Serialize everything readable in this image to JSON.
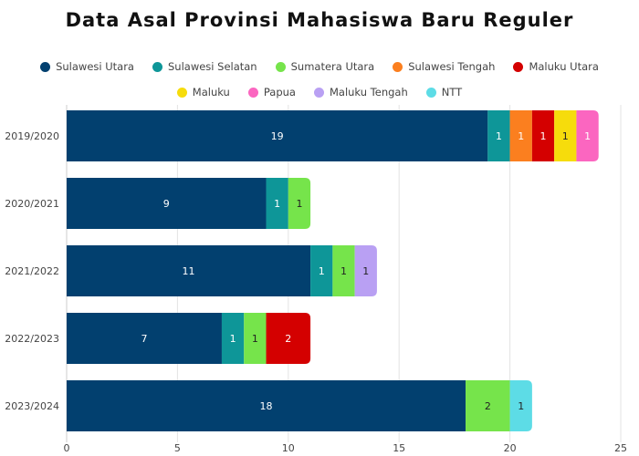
{
  "chart_data": {
    "type": "bar",
    "orientation": "horizontal",
    "stacked": true,
    "title": "Data Asal Provinsi Mahasiswa Baru Reguler",
    "xlabel": "",
    "ylabel": "",
    "xlim": [
      0,
      25
    ],
    "xticks": [
      0,
      5,
      10,
      15,
      20,
      25
    ],
    "grid": true,
    "legend_position": "top",
    "categories": [
      "2019/2020",
      "2020/2021",
      "2021/2022",
      "2022/2023",
      "2023/2024"
    ],
    "series": [
      {
        "name": "Sulawesi Utara",
        "color": "#02406f",
        "label_color": "#ffffff",
        "values": [
          19,
          9,
          11,
          7,
          18
        ]
      },
      {
        "name": "Sulawesi Selatan",
        "color": "#0e9698",
        "label_color": "#ffffff",
        "values": [
          1,
          1,
          1,
          1,
          0
        ]
      },
      {
        "name": "Sumatera Utara",
        "color": "#76e44b",
        "label_color": "#222222",
        "values": [
          0,
          1,
          1,
          1,
          2
        ]
      },
      {
        "name": "Sulawesi Tengah",
        "color": "#fb7f1f",
        "label_color": "#ffffff",
        "values": [
          1,
          0,
          0,
          0,
          0
        ]
      },
      {
        "name": "Maluku Utara",
        "color": "#d40000",
        "label_color": "#ffffff",
        "values": [
          1,
          0,
          0,
          2,
          0
        ]
      },
      {
        "name": "Maluku",
        "color": "#f6dc0c",
        "label_color": "#222222",
        "values": [
          1,
          0,
          0,
          0,
          0
        ]
      },
      {
        "name": "Papua",
        "color": "#fb66c0",
        "label_color": "#ffffff",
        "values": [
          1,
          0,
          0,
          0,
          0
        ]
      },
      {
        "name": "Maluku Tengah",
        "color": "#b9a0f3",
        "label_color": "#222222",
        "values": [
          0,
          0,
          1,
          0,
          0
        ]
      },
      {
        "name": "NTT",
        "color": "#5ddce6",
        "label_color": "#222222",
        "values": [
          0,
          0,
          0,
          0,
          1
        ]
      }
    ]
  }
}
